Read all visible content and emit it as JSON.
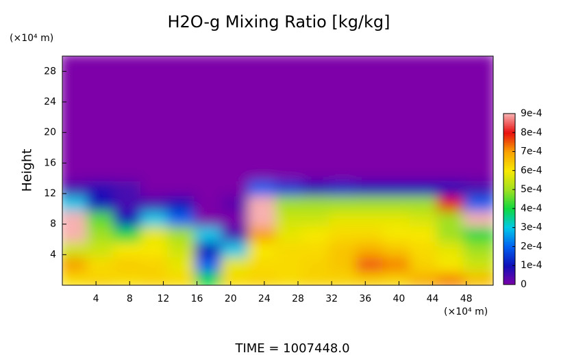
{
  "chart_data": {
    "type": "heatmap",
    "title": "H2O-g Mixing Ratio [kg/kg]",
    "y_label": "Height",
    "x_unit": "(×10⁴ m)",
    "y_unit": "(×10⁴ m)",
    "footer": "TIME = 1007448.0",
    "xlim": [
      0,
      51.2
    ],
    "ylim": [
      0,
      30
    ],
    "xticks": [
      4,
      8,
      12,
      16,
      20,
      24,
      28,
      32,
      36,
      40,
      44,
      48
    ],
    "yticks": [
      4,
      8,
      12,
      16,
      20,
      24,
      28
    ],
    "zlim": [
      0,
      0.0009
    ],
    "zticks": [
      0,
      {
        "value": 0.0001,
        "label": "1e-4"
      },
      {
        "value": 0.0002,
        "label": "2e-4"
      },
      {
        "value": 0.0003,
        "label": "3e-4"
      },
      {
        "value": 0.0004,
        "label": "4e-4"
      },
      {
        "value": 0.0005,
        "label": "5e-4"
      },
      {
        "value": 0.0006,
        "label": "6e-4"
      },
      {
        "value": 0.0007,
        "label": "7e-4"
      },
      {
        "value": 0.0008,
        "label": "8e-4"
      },
      {
        "value": 0.0009,
        "label": "9e-4"
      }
    ],
    "colormap": [
      "#7d00a8",
      "#1010b8",
      "#0060f0",
      "#00c8e8",
      "#10d840",
      "#a0e020",
      "#f8e800",
      "#f8a000",
      "#e81010",
      "#f8b0b0"
    ],
    "x": [
      1.6,
      4.8,
      8,
      11.2,
      14.4,
      17.6,
      20.8,
      24,
      27.2,
      30.4,
      33.6,
      36.8,
      40,
      43.2,
      46.4,
      49.6
    ],
    "y": [
      1,
      3,
      5,
      7,
      9,
      11,
      13,
      15,
      17,
      19,
      21,
      23,
      25,
      27,
      29
    ],
    "z": [
      [
        0.00062,
        0.00063,
        0.00062,
        0.00063,
        0.00062,
        0.0004,
        0.00062,
        0.00063,
        0.00062,
        0.00063,
        0.00063,
        0.00064,
        0.00063,
        0.00068,
        0.00072,
        0.00066
      ],
      [
        0.0007,
        0.00062,
        0.00064,
        0.00063,
        0.00058,
        0.0002,
        0.00058,
        0.00062,
        0.00062,
        0.00063,
        0.00065,
        0.00075,
        0.00072,
        0.00063,
        0.0006,
        0.00055
      ],
      [
        0.00055,
        0.00055,
        0.0006,
        0.0006,
        0.00055,
        0.0001,
        0.0003,
        0.0006,
        0.00062,
        0.00062,
        0.00065,
        0.00068,
        0.00065,
        0.00062,
        0.00058,
        0.0005
      ],
      [
        0.0009,
        0.0005,
        0.0004,
        0.00058,
        0.0005,
        0.0003,
        5e-05,
        0.0007,
        0.00058,
        0.0006,
        0.00062,
        0.00062,
        0.0006,
        0.0006,
        0.0005,
        0.0004
      ],
      [
        0.0009,
        0.00045,
        0.0001,
        0.0003,
        0.0002,
        0,
        0,
        0.0009,
        0.00055,
        0.00055,
        0.00058,
        0.00058,
        0.00058,
        0.00056,
        0.0005,
        0.0009
      ],
      [
        0.0003,
        0.0001,
        5e-05,
        5e-05,
        0.0001,
        0,
        3e-05,
        0.0009,
        0.0005,
        0.0005,
        0.0005,
        0.0005,
        0.0005,
        0.0005,
        0.0008,
        0.0002
      ],
      [
        5e-05,
        8e-05,
        5e-05,
        0,
        0,
        0,
        0,
        0.0002,
        0.00015,
        0.0001,
        0.00012,
        0.0001,
        0.0001,
        0.0001,
        0.0001,
        5e-05
      ],
      [
        0,
        0,
        0,
        0,
        0,
        0,
        0,
        0,
        0,
        0,
        0,
        0,
        0,
        0,
        0,
        0
      ],
      [
        0,
        0,
        0,
        0,
        0,
        0,
        0,
        0,
        0,
        0,
        0,
        0,
        0,
        0,
        0,
        0
      ],
      [
        0,
        0,
        0,
        0,
        0,
        0,
        0,
        0,
        0,
        0,
        0,
        0,
        0,
        0,
        0,
        0
      ],
      [
        0,
        0,
        0,
        0,
        0,
        0,
        0,
        0,
        0,
        0,
        0,
        0,
        0,
        0,
        0,
        0
      ],
      [
        0,
        0,
        0,
        0,
        0,
        0,
        0,
        0,
        0,
        0,
        0,
        0,
        0,
        0,
        0,
        0
      ],
      [
        0,
        0,
        0,
        0,
        0,
        0,
        0,
        0,
        0,
        0,
        0,
        0,
        0,
        0,
        0,
        0
      ],
      [
        0,
        0,
        0,
        0,
        0,
        0,
        0,
        0,
        0,
        0,
        0,
        0,
        0,
        0,
        0,
        0
      ],
      [
        0,
        0,
        0,
        0,
        0,
        0,
        0,
        0,
        0,
        0,
        0,
        0,
        0,
        0,
        0,
        0
      ]
    ]
  }
}
